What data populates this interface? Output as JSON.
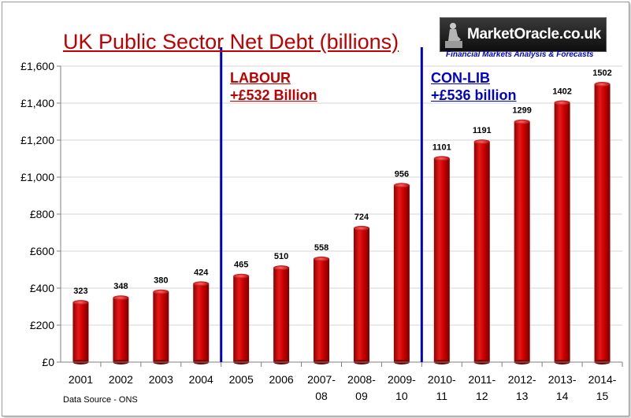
{
  "chart_data": {
    "type": "bar",
    "title": "UK Public Sector Net Debt (billions)",
    "categories": [
      "2001",
      "2002",
      "2003",
      "2004",
      "2005",
      "2006",
      "2007-08",
      "2008-09",
      "2009-10",
      "2010-11",
      "2011-12",
      "2012-13",
      "2013-14",
      "2014-15"
    ],
    "values": [
      323,
      348,
      380,
      424,
      465,
      510,
      558,
      724,
      956,
      1101,
      1191,
      1299,
      1402,
      1502
    ],
    "y_ticks": [
      "£0",
      "£200",
      "£400",
      "£600",
      "£800",
      "£1,000",
      "£1,200",
      "£1,400",
      "£1,600"
    ],
    "ylim": [
      0,
      1600
    ],
    "xlabel": "",
    "ylabel": "",
    "bar_color": "#cc0000",
    "divider_color": "#0000cc",
    "grid": true,
    "annotations": {
      "labour_line1": "LABOUR",
      "labour_line2": "+£532 Billion",
      "conlib_line1": "CON-LIB",
      "conlib_line2": "+£536 billion"
    }
  },
  "source": "Data Source - ONS",
  "logo": {
    "name": "MarketOracle.co.uk",
    "tagline": "Financial Markets Analysis & Forecasts"
  }
}
